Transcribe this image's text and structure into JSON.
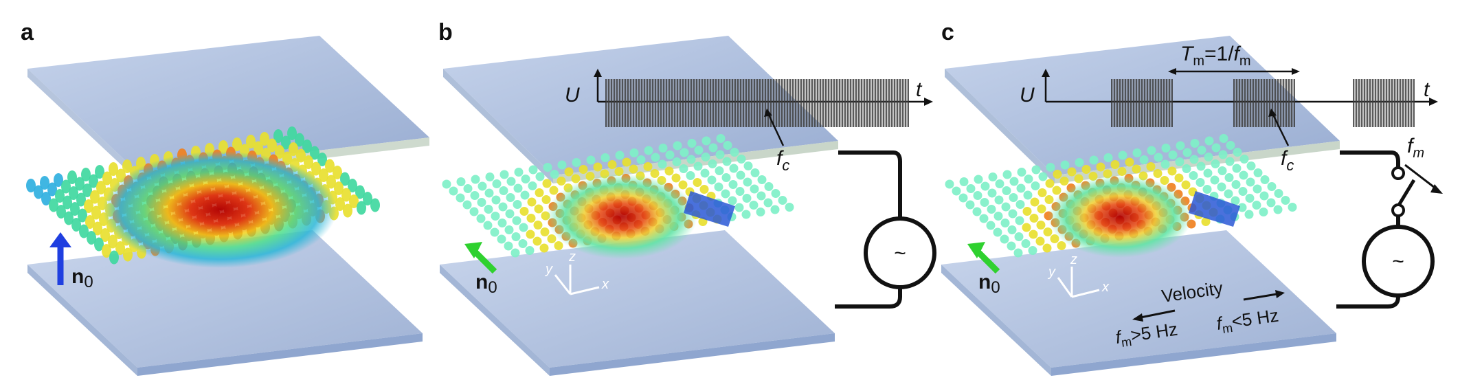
{
  "panels": [
    {
      "letter": "a",
      "n_label": "n",
      "n_sub": "0",
      "arrow_color": "#1f3fe0"
    },
    {
      "letter": "b",
      "n_label": "n",
      "n_sub": "0",
      "arrow_color": "#2fd12f",
      "voltage_axis": "U",
      "time_axis": "t",
      "carrier_label": "f",
      "carrier_sub": "c",
      "source_symbol": "~"
    },
    {
      "letter": "c",
      "n_label": "n",
      "n_sub": "0",
      "arrow_color": "#2fd12f",
      "voltage_axis": "U",
      "time_axis": "t",
      "carrier_label": "f",
      "carrier_sub": "c",
      "source_symbol": "~",
      "period_label": {
        "T": "T",
        "T_sub": "m",
        "eq": "=1/",
        "f": "f",
        "f_sub": "m"
      },
      "switch_label": {
        "f": "f",
        "sub": "m"
      },
      "velocity": "Velocity",
      "fast": {
        "f": "f",
        "sub": "m",
        "rest": ">5 Hz"
      },
      "slow": {
        "f": "f",
        "sub": "m",
        "rest": "<5 Hz"
      }
    }
  ],
  "axes_labels": {
    "x": "x",
    "y": "y",
    "z": "z"
  },
  "colors": {
    "glass_top": "#9fb4d8",
    "glass_edge": "#c9d6c9",
    "glass_bottom": "#8fa6cf",
    "wire": "#111111"
  }
}
